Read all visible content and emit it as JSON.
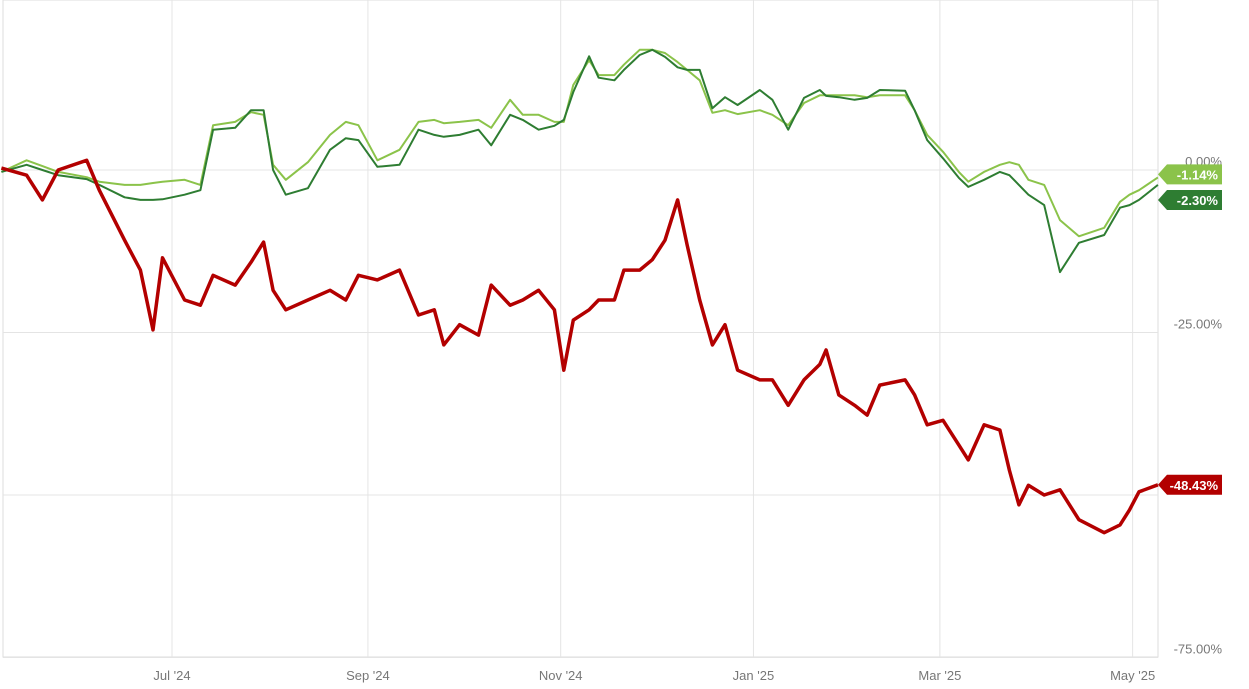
{
  "chart_data": {
    "type": "line",
    "title": "",
    "xlabel": "",
    "ylabel": "",
    "x_tick_labels": [
      {
        "date": "2024-07-01",
        "label": "Jul '24"
      },
      {
        "date": "2024-09-01",
        "label": "Sep '24"
      },
      {
        "date": "2024-11-01",
        "label": "Nov '24"
      },
      {
        "date": "2025-01-01",
        "label": "Jan '25"
      },
      {
        "date": "2025-03-01",
        "label": "Mar '25"
      },
      {
        "date": "2025-05-01",
        "label": "May '25"
      }
    ],
    "y_gridlines": [
      0,
      -25,
      -50,
      -75
    ],
    "y_tick_labels": [
      {
        "value": 0,
        "label": "0.00%"
      },
      {
        "value": -25,
        "label": "-25.00%"
      },
      {
        "value": -75,
        "label": "-75.00%"
      }
    ],
    "ylim": [
      -75,
      26
    ],
    "xlim": [
      "2024-05-08",
      "2025-05-09"
    ],
    "grid": true,
    "dates": [
      "2024-05-08",
      "2024-05-16",
      "2024-05-21",
      "2024-05-26",
      "2024-06-04",
      "2024-06-08",
      "2024-06-16",
      "2024-06-21",
      "2024-06-25",
      "2024-06-28",
      "2024-07-05",
      "2024-07-10",
      "2024-07-14",
      "2024-07-21",
      "2024-07-26",
      "2024-07-30",
      "2024-08-02",
      "2024-08-06",
      "2024-08-13",
      "2024-08-20",
      "2024-08-25",
      "2024-08-29",
      "2024-09-04",
      "2024-09-11",
      "2024-09-17",
      "2024-09-22",
      "2024-09-25",
      "2024-09-30",
      "2024-10-06",
      "2024-10-10",
      "2024-10-16",
      "2024-10-20",
      "2024-10-25",
      "2024-10-30",
      "2024-11-02",
      "2024-11-05",
      "2024-11-10",
      "2024-11-13",
      "2024-11-18",
      "2024-11-21",
      "2024-11-26",
      "2024-11-30",
      "2024-12-04",
      "2024-12-08",
      "2024-12-11",
      "2024-12-15",
      "2024-12-19",
      "2024-12-23",
      "2024-12-27",
      "2025-01-03",
      "2025-01-07",
      "2025-01-12",
      "2025-01-17",
      "2025-01-22",
      "2025-01-24",
      "2025-01-28",
      "2025-02-02",
      "2025-02-06",
      "2025-02-10",
      "2025-02-18",
      "2025-02-21",
      "2025-02-25",
      "2025-03-02",
      "2025-03-07",
      "2025-03-10",
      "2025-03-15",
      "2025-03-20",
      "2025-03-23",
      "2025-03-26",
      "2025-03-29",
      "2025-04-03",
      "2025-04-08",
      "2025-04-14",
      "2025-04-22",
      "2025-04-27",
      "2025-04-30",
      "2025-05-03",
      "2025-05-09"
    ],
    "series": [
      {
        "color": "#8bc34a",
        "last_label": "-1.14%",
        "width": 2,
        "values": [
          -0.3,
          1.5,
          0.6,
          -0.3,
          -1.1,
          -1.8,
          -2.3,
          -2.3,
          -2,
          -1.8,
          -1.5,
          -2.3,
          6.9,
          7.4,
          8.9,
          8.5,
          0.8,
          -1.5,
          1.2,
          5.4,
          7.4,
          6.9,
          1.5,
          3.1,
          7.4,
          7.7,
          7.2,
          7.4,
          7.7,
          6.5,
          10.8,
          8.5,
          8.5,
          7.4,
          7.4,
          13.1,
          16.9,
          14.6,
          14.6,
          16.2,
          18.5,
          18.5,
          18,
          16.6,
          15.4,
          13.8,
          8.8,
          9.2,
          8.6,
          9.2,
          8.5,
          6.9,
          10.3,
          11.5,
          11.5,
          11.5,
          11.5,
          11.2,
          11.5,
          11.5,
          9.2,
          5.4,
          2.8,
          -0.3,
          -1.8,
          -0.3,
          0.8,
          1.2,
          0.8,
          -1.5,
          -2.3,
          -7.7,
          -10.2,
          -8.9,
          -4.9,
          -3.8,
          -3.1,
          -1.14
        ]
      },
      {
        "color": "#2e7d32",
        "last_label": "-2.30%",
        "width": 2,
        "values": [
          -0.3,
          0.8,
          0,
          -0.8,
          -1.4,
          -2.3,
          -4.2,
          -4.6,
          -4.6,
          -4.5,
          -3.8,
          -3.1,
          6.2,
          6.5,
          9.2,
          9.2,
          0,
          -3.8,
          -2.8,
          3.1,
          4.9,
          4.6,
          0.5,
          0.8,
          6.2,
          5.4,
          5.1,
          5.4,
          6.2,
          3.8,
          8.5,
          7.7,
          6.2,
          6.8,
          7.7,
          12,
          17.5,
          14.2,
          13.8,
          15.4,
          17.7,
          18.5,
          17.4,
          15.8,
          15.4,
          15.4,
          9.5,
          11.2,
          10,
          12.3,
          10.8,
          6.2,
          11.1,
          12.3,
          11.4,
          11.2,
          10.8,
          11.1,
          12.3,
          12.2,
          9.2,
          4.6,
          1.8,
          -1.2,
          -2.6,
          -1.5,
          -0.3,
          -0.8,
          -2.3,
          -3.8,
          -5.4,
          -15.7,
          -11.2,
          -10,
          -5.8,
          -5.4,
          -4.6,
          -2.3
        ]
      },
      {
        "color": "#b30000",
        "last_label": "-48.43%",
        "width": 3.5,
        "values": [
          0.3,
          -0.8,
          -4.6,
          0,
          1.5,
          -3.1,
          -10.8,
          -15.4,
          -24.6,
          -13.5,
          -20,
          -20.8,
          -16.2,
          -17.7,
          -14.2,
          -11.1,
          -18.5,
          -21.5,
          -20,
          -18.5,
          -20,
          -16.2,
          -16.9,
          -15.4,
          -22.3,
          -21.5,
          -26.9,
          -23.8,
          -25.4,
          -17.7,
          -20.8,
          -20,
          -18.5,
          -21.5,
          -30.8,
          -23.1,
          -21.5,
          -20,
          -20,
          -15.4,
          -15.4,
          -13.8,
          -10.8,
          -4.6,
          -11.5,
          -20,
          -26.9,
          -23.8,
          -30.8,
          -32.3,
          -32.3,
          -36.2,
          -32.3,
          -29.9,
          -27.7,
          -34.6,
          -36.2,
          -37.7,
          -33.1,
          -32.3,
          -34.6,
          -39.2,
          -38.5,
          -42.3,
          -44.6,
          -39.2,
          -40,
          -46.2,
          -51.5,
          -48.5,
          -50,
          -49.2,
          -53.8,
          -55.8,
          -54.6,
          -52.3,
          -49.5,
          -48.43
        ]
      }
    ]
  }
}
